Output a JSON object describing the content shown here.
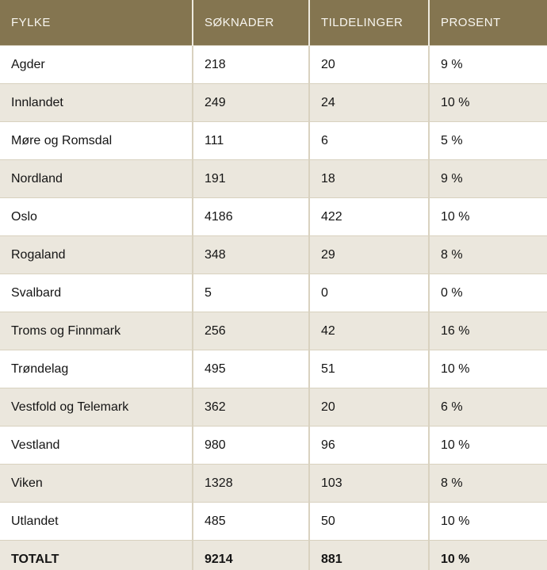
{
  "colors": {
    "header_bg": "#847550",
    "header_text": "#f8f6f0",
    "row_bg": "#ffffff",
    "row_alt_bg": "#ebe7dd",
    "grid_border": "#d8d1bf",
    "header_divider": "#eeeadf",
    "body_text": "#141414"
  },
  "table": {
    "columns": [
      "FYLKE",
      "SØKNADER",
      "TILDELINGER",
      "PROSENT"
    ],
    "rows": [
      {
        "fylke": "Agder",
        "soknader": "218",
        "tildelinger": "20",
        "prosent": "9 %"
      },
      {
        "fylke": "Innlandet",
        "soknader": "249",
        "tildelinger": "24",
        "prosent": "10 %"
      },
      {
        "fylke": "Møre og Romsdal",
        "soknader": "111",
        "tildelinger": "6",
        "prosent": "5 %"
      },
      {
        "fylke": "Nordland",
        "soknader": "191",
        "tildelinger": "18",
        "prosent": "9 %"
      },
      {
        "fylke": "Oslo",
        "soknader": "4186",
        "tildelinger": "422",
        "prosent": "10 %"
      },
      {
        "fylke": "Rogaland",
        "soknader": "348",
        "tildelinger": "29",
        "prosent": "8 %"
      },
      {
        "fylke": "Svalbard",
        "soknader": "5",
        "tildelinger": "0",
        "prosent": "0 %"
      },
      {
        "fylke": "Troms og Finnmark",
        "soknader": "256",
        "tildelinger": "42",
        "prosent": "16 %"
      },
      {
        "fylke": "Trøndelag",
        "soknader": "495",
        "tildelinger": "51",
        "prosent": "10 %"
      },
      {
        "fylke": "Vestfold og Telemark",
        "soknader": "362",
        "tildelinger": "20",
        "prosent": "6 %"
      },
      {
        "fylke": "Vestland",
        "soknader": "980",
        "tildelinger": "96",
        "prosent": "10 %"
      },
      {
        "fylke": "Viken",
        "soknader": "1328",
        "tildelinger": "103",
        "prosent": "8 %"
      },
      {
        "fylke": "Utlandet",
        "soknader": "485",
        "tildelinger": "50",
        "prosent": "10 %"
      },
      {
        "fylke": "TOTALT",
        "soknader": "9214",
        "tildelinger": "881",
        "prosent": "10 %"
      }
    ]
  },
  "chart_data": {
    "type": "table",
    "title": "",
    "columns": [
      "FYLKE",
      "SØKNADER",
      "TILDELINGER",
      "PROSENT"
    ],
    "rows": [
      [
        "Agder",
        218,
        20,
        "9 %"
      ],
      [
        "Innlandet",
        249,
        24,
        "10 %"
      ],
      [
        "Møre og Romsdal",
        111,
        6,
        "5 %"
      ],
      [
        "Nordland",
        191,
        18,
        "9 %"
      ],
      [
        "Oslo",
        4186,
        422,
        "10 %"
      ],
      [
        "Rogaland",
        348,
        29,
        "8 %"
      ],
      [
        "Svalbard",
        5,
        0,
        "0 %"
      ],
      [
        "Troms og Finnmark",
        256,
        42,
        "16 %"
      ],
      [
        "Trøndelag",
        495,
        51,
        "10 %"
      ],
      [
        "Vestfold og Telemark",
        362,
        20,
        "6 %"
      ],
      [
        "Vestland",
        980,
        96,
        "10 %"
      ],
      [
        "Viken",
        1328,
        103,
        "8 %"
      ],
      [
        "Utlandet",
        485,
        50,
        "10 %"
      ],
      [
        "TOTALT",
        9214,
        881,
        "10 %"
      ]
    ]
  }
}
